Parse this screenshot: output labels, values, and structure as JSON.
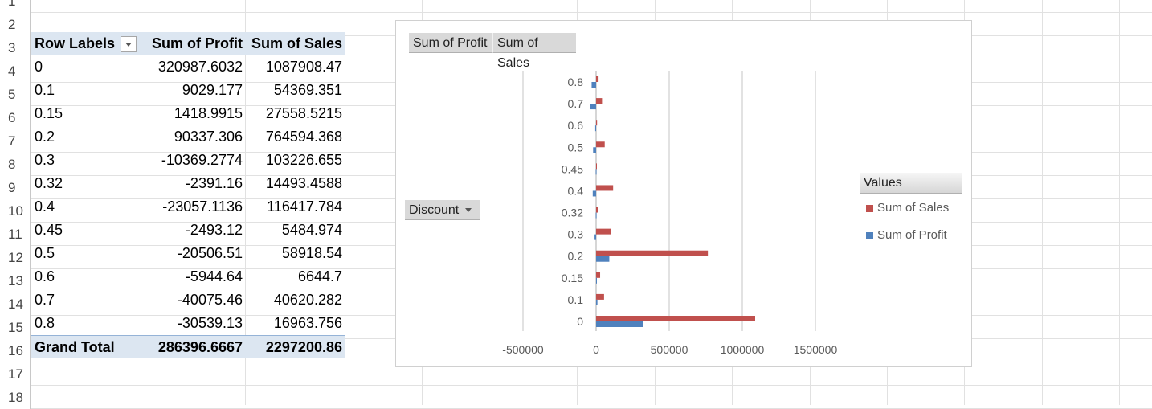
{
  "row_numbers": [
    "1",
    "2",
    "3",
    "4",
    "5",
    "6",
    "7",
    "8",
    "9",
    "10",
    "11",
    "12",
    "13",
    "14",
    "15",
    "16",
    "17",
    "18"
  ],
  "pivot": {
    "headers": {
      "row_labels": "Row Labels",
      "profit": "Sum of Profit",
      "sales": "Sum of Sales"
    },
    "rows": [
      {
        "label": "0",
        "profit": "320987.6032",
        "sales": "1087908.47"
      },
      {
        "label": "0.1",
        "profit": "9029.177",
        "sales": "54369.351"
      },
      {
        "label": "0.15",
        "profit": "1418.9915",
        "sales": "27558.5215"
      },
      {
        "label": "0.2",
        "profit": "90337.306",
        "sales": "764594.368"
      },
      {
        "label": "0.3",
        "profit": "-10369.2774",
        "sales": "103226.655"
      },
      {
        "label": "0.32",
        "profit": "-2391.16",
        "sales": "14493.4588"
      },
      {
        "label": "0.4",
        "profit": "-23057.1136",
        "sales": "116417.784"
      },
      {
        "label": "0.45",
        "profit": "-2493.12",
        "sales": "5484.974"
      },
      {
        "label": "0.5",
        "profit": "-20506.51",
        "sales": "58918.54"
      },
      {
        "label": "0.6",
        "profit": "-5944.64",
        "sales": "6644.7"
      },
      {
        "label": "0.7",
        "profit": "-40075.46",
        "sales": "40620.282"
      },
      {
        "label": "0.8",
        "profit": "-30539.13",
        "sales": "16963.756"
      }
    ],
    "total": {
      "label": "Grand Total",
      "profit": "286396.6667",
      "sales": "2297200.86"
    }
  },
  "chart": {
    "field_buttons": {
      "profit": "Sum of Profit",
      "sales": "Sum of Sales",
      "axis": "Discount"
    },
    "legend": {
      "title": "Values",
      "sales": "Sum of Sales",
      "profit": "Sum of Profit"
    }
  },
  "colors": {
    "sales": "#c0504d",
    "profit": "#4f81bd",
    "pivot_header": "#dce6f1"
  },
  "chart_data": {
    "type": "bar",
    "orientation": "horizontal",
    "categories": [
      "0",
      "0.1",
      "0.15",
      "0.2",
      "0.3",
      "0.32",
      "0.4",
      "0.45",
      "0.5",
      "0.6",
      "0.7",
      "0.8"
    ],
    "series": [
      {
        "name": "Sum of Sales",
        "values": [
          1087908.47,
          54369.351,
          27558.5215,
          764594.368,
          103226.655,
          14493.4588,
          116417.784,
          5484.974,
          58918.54,
          6644.7,
          40620.282,
          16963.756
        ]
      },
      {
        "name": "Sum of Profit",
        "values": [
          320987.6032,
          9029.177,
          1418.9915,
          90337.306,
          -10369.2774,
          -2391.16,
          -23057.1136,
          -2493.12,
          -20506.51,
          -5944.64,
          -40075.46,
          -30539.13
        ]
      }
    ],
    "xticks": [
      "-500000",
      "0",
      "500000",
      "1000000",
      "1500000"
    ],
    "xlim": [
      -500000,
      1500000
    ],
    "grid": true,
    "legend_position": "right"
  }
}
